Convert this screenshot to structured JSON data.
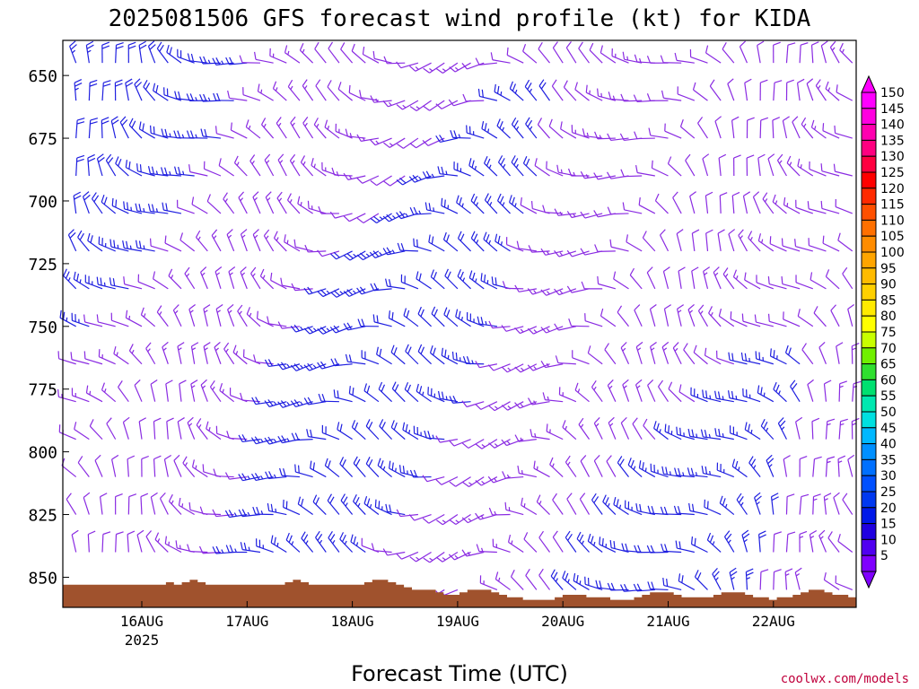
{
  "chart_data": {
    "type": "wind-barb-profile",
    "title": "2025081506 GFS forecast wind profile (kt) for KIDA",
    "xlabel": "Forecast Time (UTC)",
    "ylabel": "",
    "credit": "coolwx.com/models",
    "y_axis": {
      "quantity": "pressure (hPa)",
      "inverted": true,
      "range": [
        636,
        862
      ],
      "ticks": [
        "650",
        "675",
        "700",
        "725",
        "750",
        "775",
        "800",
        "825",
        "850"
      ]
    },
    "x_axis": {
      "start": "2025-08-15 06 UTC",
      "end": "2025-08-22 18 UTC",
      "ticks": [
        {
          "time": "2025-08-16 00Z",
          "label": "16AUG",
          "sublabel": "2025"
        },
        {
          "time": "2025-08-17 00Z",
          "label": "17AUG",
          "sublabel": ""
        },
        {
          "time": "2025-08-18 00Z",
          "label": "18AUG",
          "sublabel": ""
        },
        {
          "time": "2025-08-19 00Z",
          "label": "19AUG",
          "sublabel": ""
        },
        {
          "time": "2025-08-20 00Z",
          "label": "20AUG",
          "sublabel": ""
        },
        {
          "time": "2025-08-21 00Z",
          "label": "21AUG",
          "sublabel": ""
        },
        {
          "time": "2025-08-22 00Z",
          "label": "22AUG",
          "sublabel": ""
        }
      ],
      "interval_hours": 3
    },
    "levels_hPa": [
      645,
      660,
      675,
      690,
      705,
      720,
      735,
      750,
      765,
      780,
      795,
      810,
      825,
      840,
      855
    ],
    "colorbar": {
      "units": "kt",
      "labels": [
        "150",
        "145",
        "140",
        "135",
        "130",
        "125",
        "120",
        "115",
        "110",
        "105",
        "100",
        "95",
        "90",
        "85",
        "80",
        "75",
        "70",
        "65",
        "60",
        "55",
        "50",
        "45",
        "40",
        "35",
        "30",
        "25",
        "20",
        "15",
        "10",
        "5"
      ],
      "colors": [
        "#ff00ff",
        "#ff00e0",
        "#ff00b0",
        "#ff0080",
        "#ff0040",
        "#ff0000",
        "#ff2a00",
        "#ff5000",
        "#ff7000",
        "#ff8c00",
        "#ffa500",
        "#ffbb00",
        "#ffd000",
        "#ffea00",
        "#ffff00",
        "#c8ff00",
        "#70f000",
        "#30e030",
        "#00e070",
        "#00e8b0",
        "#00e0e0",
        "#00b8ff",
        "#0090ff",
        "#0070ff",
        "#0050ff",
        "#0038f0",
        "#0018e8",
        "#2000e0",
        "#5000f0",
        "#8000ff"
      ]
    },
    "terrain": {
      "color": "#a0522d",
      "surface_pressure_hPa": [
        853,
        853,
        853,
        853,
        853,
        853,
        853,
        853,
        853,
        853,
        853,
        853,
        853,
        852,
        853,
        852,
        851,
        852,
        853,
        853,
        853,
        853,
        853,
        853,
        853,
        853,
        853,
        853,
        852,
        851,
        852,
        853,
        853,
        853,
        853,
        853,
        853,
        853,
        852,
        851,
        851,
        852,
        853,
        854,
        855,
        855,
        855,
        856,
        857,
        857,
        856,
        855,
        855,
        855,
        856,
        857,
        858,
        858,
        859,
        859,
        859,
        859,
        858,
        857,
        857,
        857,
        858,
        858,
        858,
        859,
        859,
        859,
        858,
        857,
        856,
        856,
        856,
        857,
        858,
        858,
        858,
        858,
        857,
        856,
        856,
        856,
        857,
        858,
        858,
        859,
        858,
        858,
        857,
        856,
        855,
        855,
        856,
        857,
        857,
        858
      ]
    },
    "colors": {
      "purple_5_15kt": "#8a2be2",
      "blue_15_25kt": "#1f1fe0",
      "terrain": "#a0522d"
    }
  }
}
